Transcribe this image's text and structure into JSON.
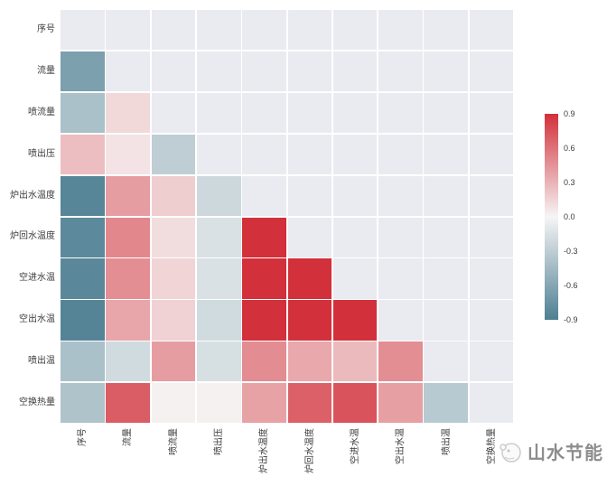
{
  "chart_data": {
    "type": "heatmap",
    "subtype": "correlation-matrix-lower-triangle",
    "title": "",
    "labels": [
      "序号",
      "流量",
      "喷流量",
      "喷出压",
      "炉出水温度",
      "炉回水温度",
      "空进水温",
      "空出水温",
      "喷出温",
      "空换热量"
    ],
    "matrix": [
      [
        null,
        null,
        null,
        null,
        null,
        null,
        null,
        null,
        null,
        null
      ],
      [
        -0.65,
        null,
        null,
        null,
        null,
        null,
        null,
        null,
        null,
        null
      ],
      [
        -0.4,
        0.13,
        null,
        null,
        null,
        null,
        null,
        null,
        null,
        null
      ],
      [
        0.25,
        0.08,
        -0.3,
        null,
        null,
        null,
        null,
        null,
        null,
        null
      ],
      [
        -0.85,
        0.4,
        0.18,
        -0.22,
        null,
        null,
        null,
        null,
        null,
        null
      ],
      [
        -0.82,
        0.5,
        0.11,
        -0.15,
        0.92,
        null,
        null,
        null,
        null,
        null
      ],
      [
        -0.83,
        0.47,
        0.15,
        -0.15,
        0.92,
        0.92,
        null,
        null,
        null,
        null
      ],
      [
        -0.86,
        0.36,
        0.16,
        -0.2,
        0.92,
        0.91,
        0.91,
        null,
        null,
        null
      ],
      [
        -0.4,
        -0.2,
        0.4,
        -0.17,
        0.48,
        0.35,
        0.27,
        0.47,
        null,
        null
      ],
      [
        -0.38,
        0.7,
        0.02,
        0.02,
        0.38,
        0.68,
        0.74,
        0.39,
        -0.33,
        null
      ]
    ],
    "vmin": -0.9,
    "vmax": 0.9,
    "grid": true,
    "legend_position": "right-colorbar",
    "colorbar_ticks": [
      "0.9",
      "0.6",
      "0.3",
      "0.0",
      "-0.3",
      "-0.6",
      "-0.9"
    ],
    "colors": {
      "positive_max": "#d2303a",
      "negative_max": "#4d7f92",
      "neutral": "#f6f5f5",
      "masked_bg": "#eaeaf1",
      "grid_line": "#ffffff",
      "tick_text": "#3b3b3b"
    }
  },
  "watermark": {
    "text": "山水节能",
    "icon": "shanshui-logo-icon",
    "text_color": "#8d8d8d"
  }
}
